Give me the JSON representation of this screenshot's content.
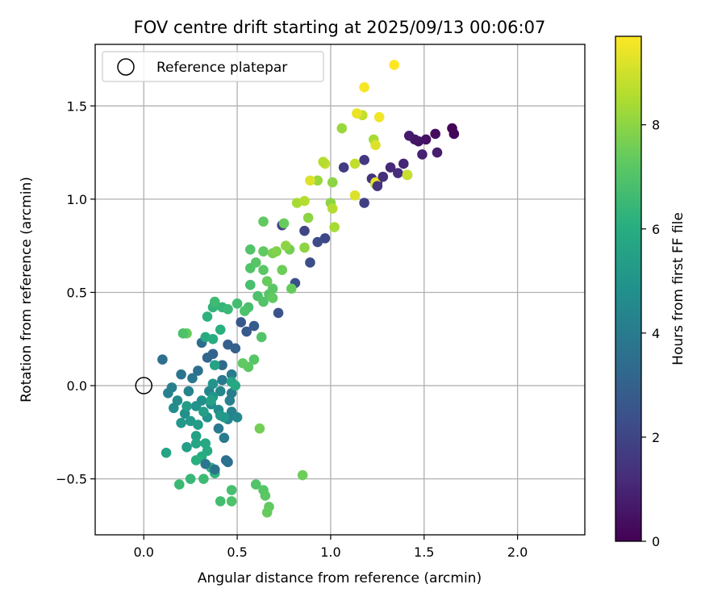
{
  "chart_data": {
    "type": "scatter",
    "title": "FOV centre drift starting at 2025/09/13 00:06:07",
    "xlabel": "Angular distance from reference (arcmin)",
    "ylabel": "Rotation from reference (arcmin)",
    "xlim": [
      -0.26,
      2.36
    ],
    "ylim": [
      -0.8,
      1.83
    ],
    "xticks": [
      0.0,
      0.5,
      1.0,
      1.5,
      2.0
    ],
    "xtick_labels": [
      "0.0",
      "0.5",
      "1.0",
      "1.5",
      "2.0"
    ],
    "yticks": [
      -0.5,
      0.0,
      0.5,
      1.0,
      1.5
    ],
    "ytick_labels": [
      "−0.5",
      "0.0",
      "0.5",
      "1.0",
      "1.5"
    ],
    "grid": true,
    "legend": {
      "placement": "top-left",
      "entries": [
        "Reference platepar"
      ]
    },
    "reference_point": {
      "x": 0.0,
      "y": 0.0,
      "marker": "open-circle",
      "label": "Reference platepar"
    },
    "colorbar": {
      "label": "Hours from first FF file",
      "colormap": "viridis",
      "range": [
        0,
        9.7
      ],
      "ticks": [
        0,
        2,
        4,
        6,
        8
      ],
      "tick_labels": [
        "0",
        "2",
        "4",
        "6",
        "8"
      ]
    },
    "points": [
      {
        "x": 1.65,
        "y": 1.38,
        "c": 0.1
      },
      {
        "x": 1.66,
        "y": 1.35,
        "c": 0.2
      },
      {
        "x": 1.56,
        "y": 1.35,
        "c": 0.3
      },
      {
        "x": 1.51,
        "y": 1.32,
        "c": 0.4
      },
      {
        "x": 1.47,
        "y": 1.31,
        "c": 0.5
      },
      {
        "x": 1.45,
        "y": 1.32,
        "c": 0.6
      },
      {
        "x": 1.42,
        "y": 1.34,
        "c": 0.7
      },
      {
        "x": 1.57,
        "y": 1.25,
        "c": 0.8
      },
      {
        "x": 1.49,
        "y": 1.24,
        "c": 0.9
      },
      {
        "x": 1.39,
        "y": 1.19,
        "c": 1.0
      },
      {
        "x": 1.32,
        "y": 1.17,
        "c": 1.1
      },
      {
        "x": 1.36,
        "y": 1.14,
        "c": 1.2
      },
      {
        "x": 1.41,
        "y": 1.13,
        "c": 1.3
      },
      {
        "x": 1.22,
        "y": 1.11,
        "c": 1.4
      },
      {
        "x": 1.25,
        "y": 1.09,
        "c": 1.5
      },
      {
        "x": 1.18,
        "y": 1.21,
        "c": 1.6
      },
      {
        "x": 1.07,
        "y": 1.17,
        "c": 1.7
      },
      {
        "x": 1.18,
        "y": 0.98,
        "c": 1.8
      },
      {
        "x": 0.74,
        "y": 0.86,
        "c": 1.9
      },
      {
        "x": 0.86,
        "y": 0.83,
        "c": 2.0
      },
      {
        "x": 0.97,
        "y": 0.79,
        "c": 2.1
      },
      {
        "x": 0.93,
        "y": 0.77,
        "c": 2.2
      },
      {
        "x": 0.89,
        "y": 0.66,
        "c": 2.3
      },
      {
        "x": 0.81,
        "y": 0.55,
        "c": 2.4
      },
      {
        "x": 0.72,
        "y": 0.39,
        "c": 2.5
      },
      {
        "x": 0.52,
        "y": 0.34,
        "c": 2.6
      },
      {
        "x": 0.55,
        "y": 0.29,
        "c": 2.7
      },
      {
        "x": 0.59,
        "y": 0.32,
        "c": 2.8
      },
      {
        "x": 0.45,
        "y": 0.22,
        "c": 2.9
      },
      {
        "x": 0.49,
        "y": 0.2,
        "c": 3.0
      },
      {
        "x": 0.37,
        "y": 0.17,
        "c": 3.1
      },
      {
        "x": 0.34,
        "y": 0.15,
        "c": 3.2
      },
      {
        "x": 0.42,
        "y": 0.11,
        "c": 3.3
      },
      {
        "x": 0.31,
        "y": 0.23,
        "c": 3.4
      },
      {
        "x": 0.1,
        "y": 0.14,
        "c": 3.5
      },
      {
        "x": 0.29,
        "y": 0.08,
        "c": 3.6
      },
      {
        "x": 0.2,
        "y": 0.06,
        "c": 3.7
      },
      {
        "x": 0.26,
        "y": 0.04,
        "c": 3.8
      },
      {
        "x": 0.42,
        "y": 0.03,
        "c": 3.9
      },
      {
        "x": 0.47,
        "y": 0.06,
        "c": 4.0
      },
      {
        "x": 0.15,
        "y": -0.01,
        "c": 4.1
      },
      {
        "x": 0.13,
        "y": -0.04,
        "c": 4.2
      },
      {
        "x": 0.24,
        "y": -0.03,
        "c": 4.3
      },
      {
        "x": 0.35,
        "y": -0.03,
        "c": 4.4
      },
      {
        "x": 0.41,
        "y": -0.03,
        "c": 4.5
      },
      {
        "x": 0.18,
        "y": -0.08,
        "c": 4.6
      },
      {
        "x": 0.16,
        "y": -0.12,
        "c": 4.7
      },
      {
        "x": 0.22,
        "y": -0.15,
        "c": 4.8
      },
      {
        "x": 0.28,
        "y": -0.11,
        "c": 4.9
      },
      {
        "x": 0.37,
        "y": -0.06,
        "c": 5.0
      },
      {
        "x": 0.2,
        "y": -0.2,
        "c": 5.1
      },
      {
        "x": 0.25,
        "y": -0.19,
        "c": 5.2
      },
      {
        "x": 0.29,
        "y": -0.21,
        "c": 5.3
      },
      {
        "x": 0.23,
        "y": -0.33,
        "c": 5.4
      },
      {
        "x": 0.28,
        "y": -0.27,
        "c": 5.5
      },
      {
        "x": 0.12,
        "y": -0.36,
        "c": 5.6
      },
      {
        "x": 0.28,
        "y": -0.31,
        "c": 5.7
      },
      {
        "x": 0.33,
        "y": -0.31,
        "c": 5.8
      },
      {
        "x": 0.34,
        "y": -0.35,
        "c": 5.9
      },
      {
        "x": 0.31,
        "y": -0.38,
        "c": 6.0
      },
      {
        "x": 0.28,
        "y": -0.4,
        "c": 6.1
      },
      {
        "x": 0.36,
        "y": -0.44,
        "c": 6.2
      },
      {
        "x": 0.38,
        "y": -0.47,
        "c": 6.3
      },
      {
        "x": 0.25,
        "y": -0.5,
        "c": 6.4
      },
      {
        "x": 0.19,
        "y": -0.53,
        "c": 6.5
      },
      {
        "x": 0.32,
        "y": -0.5,
        "c": 6.6
      },
      {
        "x": 0.41,
        "y": -0.62,
        "c": 6.7
      },
      {
        "x": 0.47,
        "y": -0.56,
        "c": 6.8
      },
      {
        "x": 0.47,
        "y": -0.62,
        "c": 6.9
      },
      {
        "x": 0.6,
        "y": -0.53,
        "c": 7.0
      },
      {
        "x": 0.64,
        "y": -0.56,
        "c": 7.1
      },
      {
        "x": 0.65,
        "y": -0.59,
        "c": 7.2
      },
      {
        "x": 0.67,
        "y": -0.65,
        "c": 7.3
      },
      {
        "x": 0.66,
        "y": -0.68,
        "c": 7.4
      },
      {
        "x": 0.85,
        "y": -0.48,
        "c": 7.5
      },
      {
        "x": 0.62,
        "y": -0.23,
        "c": 7.6
      },
      {
        "x": 0.45,
        "y": -0.41,
        "c": 3.5
      },
      {
        "x": 0.44,
        "y": -0.4,
        "c": 3.6
      },
      {
        "x": 0.38,
        "y": -0.45,
        "c": 3.7
      },
      {
        "x": 0.33,
        "y": -0.42,
        "c": 3.8
      },
      {
        "x": 0.4,
        "y": -0.23,
        "c": 3.9
      },
      {
        "x": 0.43,
        "y": -0.28,
        "c": 4.0
      },
      {
        "x": 0.47,
        "y": -0.04,
        "c": 4.1
      },
      {
        "x": 0.46,
        "y": -0.08,
        "c": 4.2
      },
      {
        "x": 0.47,
        "y": -0.14,
        "c": 4.3
      },
      {
        "x": 0.45,
        "y": -0.18,
        "c": 4.4
      },
      {
        "x": 0.5,
        "y": -0.17,
        "c": 4.5
      },
      {
        "x": 0.4,
        "y": -0.13,
        "c": 4.6
      },
      {
        "x": 0.36,
        "y": -0.1,
        "c": 4.7
      },
      {
        "x": 0.31,
        "y": -0.08,
        "c": 4.8
      },
      {
        "x": 0.34,
        "y": -0.17,
        "c": 4.9
      },
      {
        "x": 0.37,
        "y": 0.01,
        "c": 5.0
      },
      {
        "x": 0.41,
        "y": -0.16,
        "c": 5.1
      },
      {
        "x": 0.43,
        "y": -0.17,
        "c": 5.2
      },
      {
        "x": 0.23,
        "y": -0.11,
        "c": 5.3
      },
      {
        "x": 0.32,
        "y": -0.14,
        "c": 5.4
      },
      {
        "x": 0.36,
        "y": -0.08,
        "c": 5.5
      },
      {
        "x": 0.38,
        "y": 0.11,
        "c": 5.6
      },
      {
        "x": 0.47,
        "y": 0.02,
        "c": 5.7
      },
      {
        "x": 0.49,
        "y": 0.0,
        "c": 5.8
      },
      {
        "x": 0.33,
        "y": 0.26,
        "c": 5.9
      },
      {
        "x": 0.37,
        "y": 0.25,
        "c": 6.0
      },
      {
        "x": 0.41,
        "y": 0.3,
        "c": 6.1
      },
      {
        "x": 0.34,
        "y": 0.37,
        "c": 6.2
      },
      {
        "x": 0.37,
        "y": 0.42,
        "c": 6.3
      },
      {
        "x": 0.42,
        "y": 0.42,
        "c": 6.4
      },
      {
        "x": 0.45,
        "y": 0.41,
        "c": 6.5
      },
      {
        "x": 0.38,
        "y": 0.45,
        "c": 6.6
      },
      {
        "x": 0.5,
        "y": 0.44,
        "c": 6.7
      },
      {
        "x": 0.56,
        "y": 0.42,
        "c": 6.8
      },
      {
        "x": 0.54,
        "y": 0.4,
        "c": 6.9
      },
      {
        "x": 0.63,
        "y": 0.26,
        "c": 7.0
      },
      {
        "x": 0.59,
        "y": 0.14,
        "c": 7.1
      },
      {
        "x": 0.56,
        "y": 0.1,
        "c": 7.2
      },
      {
        "x": 0.53,
        "y": 0.12,
        "c": 7.3
      },
      {
        "x": 0.23,
        "y": 0.28,
        "c": 7.4
      },
      {
        "x": 0.21,
        "y": 0.28,
        "c": 6.9
      },
      {
        "x": 0.57,
        "y": 0.54,
        "c": 6.8
      },
      {
        "x": 0.61,
        "y": 0.48,
        "c": 6.9
      },
      {
        "x": 0.64,
        "y": 0.45,
        "c": 7.0
      },
      {
        "x": 0.67,
        "y": 0.49,
        "c": 7.1
      },
      {
        "x": 0.69,
        "y": 0.52,
        "c": 7.2
      },
      {
        "x": 0.69,
        "y": 0.47,
        "c": 7.3
      },
      {
        "x": 0.57,
        "y": 0.63,
        "c": 7.0
      },
      {
        "x": 0.6,
        "y": 0.66,
        "c": 7.1
      },
      {
        "x": 0.64,
        "y": 0.62,
        "c": 7.2
      },
      {
        "x": 0.64,
        "y": 0.72,
        "c": 7.3
      },
      {
        "x": 0.57,
        "y": 0.73,
        "c": 7.0
      },
      {
        "x": 0.66,
        "y": 0.56,
        "c": 7.4
      },
      {
        "x": 0.74,
        "y": 0.62,
        "c": 7.5
      },
      {
        "x": 0.78,
        "y": 0.73,
        "c": 7.6
      },
      {
        "x": 0.69,
        "y": 0.71,
        "c": 7.7
      },
      {
        "x": 0.71,
        "y": 0.72,
        "c": 7.8
      },
      {
        "x": 0.76,
        "y": 0.75,
        "c": 8.0
      },
      {
        "x": 0.79,
        "y": 0.52,
        "c": 7.4
      },
      {
        "x": 0.64,
        "y": 0.88,
        "c": 7.3
      },
      {
        "x": 0.75,
        "y": 0.87,
        "c": 7.4
      },
      {
        "x": 0.88,
        "y": 0.9,
        "c": 8.0
      },
      {
        "x": 0.86,
        "y": 0.74,
        "c": 8.0
      },
      {
        "x": 0.82,
        "y": 0.98,
        "c": 8.4
      },
      {
        "x": 0.86,
        "y": 0.99,
        "c": 8.6
      },
      {
        "x": 0.93,
        "y": 1.1,
        "c": 8.2
      },
      {
        "x": 0.89,
        "y": 1.1,
        "c": 9.2
      },
      {
        "x": 0.97,
        "y": 1.19,
        "c": 8.8
      },
      {
        "x": 0.96,
        "y": 1.2,
        "c": 8.6
      },
      {
        "x": 1.01,
        "y": 1.09,
        "c": 8.0
      },
      {
        "x": 1.0,
        "y": 0.98,
        "c": 8.0
      },
      {
        "x": 1.01,
        "y": 0.95,
        "c": 8.6
      },
      {
        "x": 1.02,
        "y": 0.85,
        "c": 8.4
      },
      {
        "x": 1.13,
        "y": 1.19,
        "c": 8.8
      },
      {
        "x": 1.13,
        "y": 1.02,
        "c": 9.2
      },
      {
        "x": 1.24,
        "y": 1.08,
        "c": 8.5
      },
      {
        "x": 1.06,
        "y": 1.38,
        "c": 8.2
      },
      {
        "x": 1.17,
        "y": 1.45,
        "c": 8.8
      },
      {
        "x": 1.14,
        "y": 1.46,
        "c": 9.4
      },
      {
        "x": 1.18,
        "y": 1.6,
        "c": 9.6
      },
      {
        "x": 1.34,
        "y": 1.72,
        "c": 9.7
      },
      {
        "x": 1.26,
        "y": 1.44,
        "c": 9.5
      },
      {
        "x": 1.23,
        "y": 1.32,
        "c": 8.4
      },
      {
        "x": 1.24,
        "y": 1.29,
        "c": 9.2
      },
      {
        "x": 1.24,
        "y": 1.09,
        "c": 9.3
      },
      {
        "x": 1.41,
        "y": 1.13,
        "c": 8.9
      },
      {
        "x": 1.28,
        "y": 1.12,
        "c": 1.3
      },
      {
        "x": 1.25,
        "y": 1.07,
        "c": 1.4
      }
    ]
  }
}
